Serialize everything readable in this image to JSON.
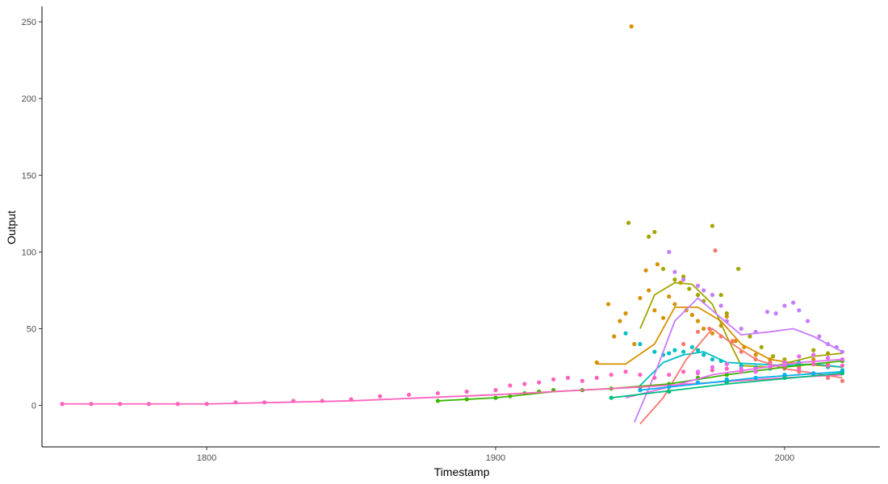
{
  "chart_data": {
    "type": "scatter",
    "title": "",
    "xlabel": "Timestamp",
    "ylabel": "Output",
    "xlim": [
      1743,
      2033
    ],
    "ylim": [
      -27,
      260
    ],
    "x_ticks": [
      1800,
      1900,
      2000
    ],
    "y_ticks": [
      0,
      50,
      100,
      150,
      200,
      250
    ],
    "x_tick_labels": [
      "1800",
      "1900",
      "2000"
    ],
    "y_tick_labels": [
      "0",
      "50",
      "100",
      "150",
      "200",
      "250"
    ],
    "grid": false,
    "legend": "none",
    "colors": [
      "#F8766D",
      "#D89000",
      "#A3A500",
      "#39B600",
      "#00BF7D",
      "#00BFC4",
      "#00B0F6",
      "#9590FF",
      "#E76BF3",
      "#FF62BC"
    ],
    "series": [
      {
        "color": "#D89000",
        "points": [
          [
            1935,
            28
          ],
          [
            1939,
            66
          ],
          [
            1941,
            45
          ],
          [
            1943,
            55
          ],
          [
            1945,
            60
          ],
          [
            1947,
            247
          ],
          [
            1948,
            40
          ],
          [
            1950,
            70
          ],
          [
            1952,
            88
          ],
          [
            1953,
            75
          ],
          [
            1955,
            62
          ],
          [
            1956,
            92
          ],
          [
            1958,
            57
          ],
          [
            1960,
            71
          ],
          [
            1962,
            66
          ],
          [
            1964,
            80
          ],
          [
            1966,
            62
          ],
          [
            1968,
            59
          ],
          [
            1970,
            55
          ],
          [
            1972,
            50
          ],
          [
            1975,
            47
          ],
          [
            1978,
            52
          ],
          [
            1980,
            58
          ],
          [
            1983,
            42
          ],
          [
            1986,
            38
          ],
          [
            1990,
            33
          ],
          [
            1995,
            30
          ],
          [
            2000,
            28
          ],
          [
            2005,
            25
          ],
          [
            2010,
            30
          ],
          [
            2015,
            27
          ],
          [
            2020,
            23
          ]
        ],
        "trend": [
          [
            1935,
            27
          ],
          [
            1945,
            27
          ],
          [
            1955,
            40
          ],
          [
            1962,
            64
          ],
          [
            1970,
            64
          ],
          [
            1978,
            55
          ],
          [
            1985,
            40
          ],
          [
            1995,
            30
          ],
          [
            2005,
            27
          ],
          [
            2020,
            25
          ]
        ]
      },
      {
        "color": "#A3A500",
        "points": [
          [
            1946,
            119
          ],
          [
            1955,
            113
          ],
          [
            1953,
            110
          ],
          [
            1958,
            89
          ],
          [
            1962,
            82
          ],
          [
            1965,
            84
          ],
          [
            1967,
            76
          ],
          [
            1970,
            72
          ],
          [
            1972,
            68
          ],
          [
            1975,
            117
          ],
          [
            1978,
            72
          ],
          [
            1980,
            60
          ],
          [
            1984,
            89
          ],
          [
            1988,
            45
          ],
          [
            1992,
            38
          ],
          [
            1996,
            32
          ],
          [
            2000,
            30
          ],
          [
            2005,
            27
          ],
          [
            2010,
            36
          ],
          [
            2015,
            34
          ],
          [
            2020,
            30
          ]
        ],
        "trend": [
          [
            1950,
            50
          ],
          [
            1955,
            72
          ],
          [
            1962,
            80
          ],
          [
            1968,
            79
          ],
          [
            1975,
            66
          ],
          [
            1980,
            45
          ],
          [
            1985,
            26
          ],
          [
            1995,
            25
          ],
          [
            2010,
            32
          ],
          [
            2020,
            34
          ]
        ]
      },
      {
        "color": "#00BFC4",
        "points": [
          [
            1945,
            47
          ],
          [
            1950,
            40
          ],
          [
            1955,
            35
          ],
          [
            1958,
            33
          ],
          [
            1960,
            34
          ],
          [
            1962,
            36
          ],
          [
            1965,
            35
          ],
          [
            1968,
            38
          ],
          [
            1970,
            36
          ],
          [
            1972,
            33
          ],
          [
            1975,
            30
          ],
          [
            1978,
            29
          ],
          [
            1980,
            27
          ],
          [
            1985,
            26
          ],
          [
            1990,
            25
          ],
          [
            1995,
            24
          ],
          [
            2000,
            26
          ],
          [
            2005,
            28
          ],
          [
            2010,
            27
          ],
          [
            2015,
            25
          ],
          [
            2020,
            23
          ]
        ],
        "trend": [
          [
            1950,
            13
          ],
          [
            1958,
            28
          ],
          [
            1965,
            33
          ],
          [
            1972,
            35
          ],
          [
            1980,
            28
          ],
          [
            1990,
            27
          ],
          [
            2000,
            26
          ],
          [
            2010,
            27
          ],
          [
            2020,
            25
          ]
        ]
      },
      {
        "color": "#C77CFF",
        "points": [
          [
            1960,
            100
          ],
          [
            1962,
            87
          ],
          [
            1965,
            82
          ],
          [
            1970,
            78
          ],
          [
            1972,
            75
          ],
          [
            1975,
            72
          ],
          [
            1978,
            65
          ],
          [
            1980,
            55
          ],
          [
            1985,
            50
          ],
          [
            1990,
            48
          ],
          [
            1994,
            61
          ],
          [
            1997,
            60
          ],
          [
            2000,
            65
          ],
          [
            2003,
            67
          ],
          [
            2005,
            62
          ],
          [
            2008,
            55
          ],
          [
            2012,
            45
          ],
          [
            2015,
            40
          ],
          [
            2018,
            38
          ],
          [
            2020,
            35
          ]
        ],
        "trend": [
          [
            1948,
            -11
          ],
          [
            1955,
            20
          ],
          [
            1962,
            55
          ],
          [
            1970,
            70
          ],
          [
            1978,
            57
          ],
          [
            1985,
            46
          ],
          [
            1995,
            48
          ],
          [
            2003,
            50
          ],
          [
            2010,
            45
          ],
          [
            2020,
            35
          ]
        ]
      },
      {
        "color": "#F8766D",
        "points": [
          [
            1965,
            40
          ],
          [
            1970,
            48
          ],
          [
            1974,
            50
          ],
          [
            1976,
            101
          ],
          [
            1978,
            45
          ],
          [
            1982,
            42
          ],
          [
            1985,
            35
          ],
          [
            1990,
            30
          ],
          [
            1995,
            28
          ],
          [
            2000,
            24
          ],
          [
            2005,
            22
          ],
          [
            2010,
            20
          ],
          [
            2015,
            18
          ],
          [
            2020,
            16
          ]
        ],
        "trend": [
          [
            1950,
            -12
          ],
          [
            1958,
            5
          ],
          [
            1966,
            30
          ],
          [
            1975,
            50
          ],
          [
            1982,
            40
          ],
          [
            1990,
            30
          ],
          [
            2000,
            24
          ],
          [
            2020,
            18
          ]
        ]
      },
      {
        "color": "#39B600",
        "points": [
          [
            1880,
            3
          ],
          [
            1890,
            4
          ],
          [
            1900,
            5
          ],
          [
            1905,
            6
          ],
          [
            1910,
            8
          ],
          [
            1915,
            9
          ],
          [
            1920,
            10
          ],
          [
            1930,
            10
          ],
          [
            1940,
            11
          ],
          [
            1950,
            12
          ],
          [
            1960,
            14
          ],
          [
            1970,
            18
          ],
          [
            1980,
            20
          ],
          [
            1990,
            22
          ],
          [
            2000,
            25
          ],
          [
            2010,
            27
          ],
          [
            2020,
            29
          ]
        ],
        "trend": [
          [
            1880,
            3
          ],
          [
            1900,
            5
          ],
          [
            1920,
            9
          ],
          [
            1940,
            11
          ],
          [
            1960,
            14
          ],
          [
            1980,
            20
          ],
          [
            2000,
            25
          ],
          [
            2020,
            29
          ]
        ]
      },
      {
        "color": "#FF62BC",
        "points": [
          [
            1750,
            1
          ],
          [
            1760,
            1
          ],
          [
            1770,
            1
          ],
          [
            1780,
            1
          ],
          [
            1790,
            1
          ],
          [
            1800,
            1
          ],
          [
            1810,
            2
          ],
          [
            1820,
            2
          ],
          [
            1830,
            3
          ],
          [
            1840,
            3
          ],
          [
            1850,
            4
          ],
          [
            1860,
            6
          ],
          [
            1870,
            7
          ],
          [
            1880,
            8
          ],
          [
            1890,
            9
          ],
          [
            1900,
            10
          ],
          [
            1905,
            13
          ],
          [
            1910,
            14
          ],
          [
            1915,
            15
          ],
          [
            1920,
            17
          ],
          [
            1925,
            18
          ],
          [
            1930,
            16
          ],
          [
            1935,
            18
          ],
          [
            1940,
            20
          ],
          [
            1945,
            22
          ],
          [
            1950,
            20
          ],
          [
            1955,
            18
          ],
          [
            1960,
            20
          ],
          [
            1965,
            22
          ],
          [
            1970,
            21
          ],
          [
            1975,
            23
          ],
          [
            1980,
            24
          ],
          [
            1985,
            22
          ],
          [
            1990,
            24
          ],
          [
            1995,
            25
          ],
          [
            2000,
            26
          ],
          [
            2005,
            24
          ],
          [
            2010,
            27
          ],
          [
            2015,
            26
          ],
          [
            2020,
            26
          ]
        ],
        "trend": [
          [
            1750,
            1
          ],
          [
            1800,
            1
          ],
          [
            1850,
            3
          ],
          [
            1900,
            7
          ],
          [
            1950,
            12
          ],
          [
            2000,
            18
          ],
          [
            2020,
            20
          ]
        ]
      },
      {
        "color": "#E76BF3",
        "points": [
          [
            1970,
            22
          ],
          [
            1975,
            25
          ],
          [
            1980,
            27
          ],
          [
            1985,
            24
          ],
          [
            1990,
            22
          ],
          [
            1995,
            26
          ],
          [
            2000,
            28
          ],
          [
            2005,
            32
          ],
          [
            2010,
            33
          ],
          [
            2015,
            31
          ],
          [
            2020,
            30
          ]
        ],
        "trend": [
          [
            1945,
            5
          ],
          [
            1960,
            12
          ],
          [
            1975,
            20
          ],
          [
            1990,
            24
          ],
          [
            2005,
            28
          ],
          [
            2020,
            30
          ]
        ]
      },
      {
        "color": "#00B0F6",
        "points": [
          [
            1950,
            10
          ],
          [
            1960,
            12
          ],
          [
            1970,
            15
          ],
          [
            1980,
            17
          ],
          [
            1990,
            18
          ],
          [
            2000,
            20
          ],
          [
            2010,
            21
          ],
          [
            2020,
            22
          ]
        ],
        "trend": [
          [
            1950,
            10
          ],
          [
            1970,
            14
          ],
          [
            1990,
            18
          ],
          [
            2020,
            22
          ]
        ]
      },
      {
        "color": "#00BF7D",
        "points": [
          [
            1940,
            5
          ],
          [
            1960,
            9
          ],
          [
            1980,
            15
          ],
          [
            2000,
            18
          ],
          [
            2020,
            21
          ]
        ],
        "trend": [
          [
            1940,
            5
          ],
          [
            1980,
            14
          ],
          [
            2020,
            21
          ]
        ]
      }
    ]
  }
}
